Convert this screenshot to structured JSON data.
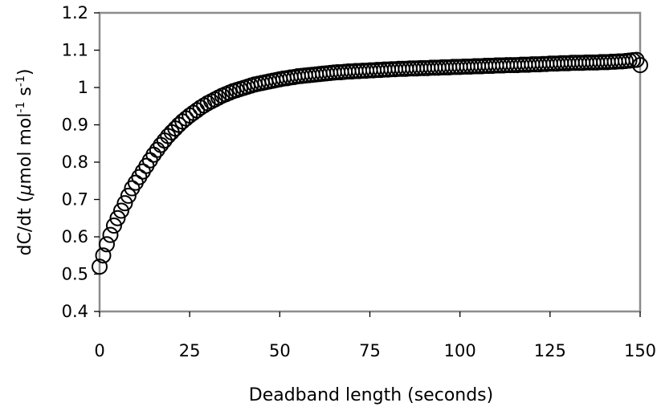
{
  "chart_data": {
    "type": "scatter",
    "title": "",
    "xlabel": "Deadband length (seconds)",
    "ylabel": {
      "prefix": "dC/dt (",
      "mu": "μ",
      "unit_a": "mol mol",
      "sup_a": "-1",
      "unit_b": " s",
      "sup_b": "-1",
      "suffix": ")"
    },
    "xlim": [
      0,
      150
    ],
    "ylim": [
      0.4,
      1.2
    ],
    "xticks": [
      "0",
      "25",
      "50",
      "75",
      "100",
      "125",
      "150"
    ],
    "yticks": [
      "0.4",
      "0.5",
      "0.6",
      "0.7",
      "0.8",
      "0.9",
      "1",
      "1.1",
      "1.2"
    ],
    "grid": false,
    "legend": "none",
    "marker": "open-circle",
    "marker_color": "#000000",
    "frame_color": "#8c8c8c",
    "points": {
      "x": [
        0,
        1,
        2,
        3,
        4,
        5,
        6,
        7,
        8,
        9,
        10,
        11,
        12,
        13,
        14,
        15,
        16,
        17,
        18,
        19,
        20,
        21,
        22,
        23,
        24,
        25,
        26,
        27,
        28,
        29,
        30,
        31,
        32,
        33,
        34,
        35,
        36,
        37,
        38,
        39,
        40,
        41,
        42,
        43,
        44,
        45,
        46,
        47,
        48,
        49,
        50,
        51,
        52,
        53,
        54,
        55,
        56,
        57,
        58,
        59,
        60,
        61,
        62,
        63,
        64,
        65,
        66,
        67,
        68,
        69,
        70,
        71,
        72,
        73,
        74,
        75,
        76,
        77,
        78,
        79,
        80,
        81,
        82,
        83,
        84,
        85,
        86,
        87,
        88,
        89,
        90,
        91,
        92,
        93,
        94,
        95,
        96,
        97,
        98,
        99,
        100,
        101,
        102,
        103,
        104,
        105,
        106,
        107,
        108,
        109,
        110,
        111,
        112,
        113,
        114,
        115,
        116,
        117,
        118,
        119,
        120,
        121,
        122,
        123,
        124,
        125,
        126,
        127,
        128,
        129,
        130,
        131,
        132,
        133,
        134,
        135,
        136,
        137,
        138,
        139,
        140,
        141,
        142,
        143,
        144,
        145,
        146,
        147,
        148,
        149,
        150
      ],
      "y": [
        0.52,
        0.55,
        0.58,
        0.605,
        0.63,
        0.65,
        0.67,
        0.69,
        0.71,
        0.73,
        0.745,
        0.76,
        0.775,
        0.79,
        0.805,
        0.82,
        0.833,
        0.846,
        0.858,
        0.87,
        0.88,
        0.89,
        0.9,
        0.909,
        0.917,
        0.925,
        0.932,
        0.939,
        0.946,
        0.952,
        0.958,
        0.963,
        0.968,
        0.973,
        0.978,
        0.982,
        0.986,
        0.99,
        0.993,
        0.996,
        0.999,
        1.002,
        1.005,
        1.008,
        1.01,
        1.012,
        1.014,
        1.016,
        1.018,
        1.02,
        1.022,
        1.024,
        1.025,
        1.027,
        1.028,
        1.03,
        1.031,
        1.032,
        1.033,
        1.034,
        1.035,
        1.036,
        1.037,
        1.038,
        1.039,
        1.04,
        1.041,
        1.041,
        1.042,
        1.043,
        1.043,
        1.044,
        1.044,
        1.045,
        1.045,
        1.046,
        1.046,
        1.047,
        1.047,
        1.048,
        1.048,
        1.049,
        1.049,
        1.05,
        1.05,
        1.05,
        1.051,
        1.051,
        1.051,
        1.052,
        1.052,
        1.052,
        1.053,
        1.053,
        1.053,
        1.054,
        1.054,
        1.054,
        1.055,
        1.055,
        1.055,
        1.056,
        1.056,
        1.056,
        1.057,
        1.057,
        1.057,
        1.058,
        1.058,
        1.058,
        1.059,
        1.059,
        1.059,
        1.06,
        1.06,
        1.06,
        1.06,
        1.061,
        1.061,
        1.061,
        1.062,
        1.062,
        1.062,
        1.063,
        1.063,
        1.064,
        1.064,
        1.064,
        1.065,
        1.065,
        1.065,
        1.066,
        1.066,
        1.066,
        1.066,
        1.067,
        1.067,
        1.067,
        1.067,
        1.068,
        1.068,
        1.068,
        1.069,
        1.069,
        1.07,
        1.07,
        1.071,
        1.072,
        1.073,
        1.074,
        1.06
      ]
    }
  }
}
